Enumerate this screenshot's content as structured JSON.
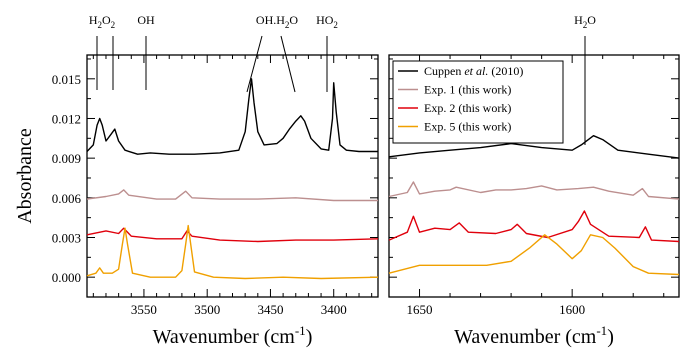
{
  "chart_data": [
    {
      "type": "line",
      "panel": "left",
      "xlabel": "Wavenumber (cm",
      "xlabel_sup": "-1",
      "xlabel_close": ")",
      "ylabel": "Absorbance",
      "xlim": [
        3595,
        3365
      ],
      "ylim": [
        -0.0015,
        0.0168
      ],
      "x_ticks": [
        3550,
        3500,
        3450,
        3400
      ],
      "x_tick_labels": [
        "3550",
        "3500",
        "3450",
        "3400"
      ],
      "y_ticks": [
        0.0,
        0.003,
        0.006,
        0.009,
        0.012,
        0.015
      ],
      "y_tick_labels": [
        "0.000",
        "0.003",
        "0.006",
        "0.009",
        "0.012",
        "0.015"
      ],
      "top_annotations": [
        {
          "label": "H",
          "sub": "2",
          "mid": "O",
          "sub2": "2",
          "x": [
            3583,
            3573
          ]
        },
        {
          "label": "OH",
          "x": [
            3549
          ]
        },
        {
          "label": "OH.H",
          "sub": "2",
          "mid": "O",
          "x": [
            3465,
            3425
          ]
        },
        {
          "label": "HO",
          "sub": "2",
          "x": [
            3400
          ]
        }
      ],
      "series": [
        {
          "color": "#000000",
          "points": [
            [
              3595,
              0.0095
            ],
            [
              3590,
              0.01
            ],
            [
              3587,
              0.0115
            ],
            [
              3585,
              0.012
            ],
            [
              3583,
              0.0115
            ],
            [
              3580,
              0.0103
            ],
            [
              3576,
              0.0108
            ],
            [
              3573,
              0.0112
            ],
            [
              3570,
              0.0103
            ],
            [
              3565,
              0.0096
            ],
            [
              3555,
              0.0093
            ],
            [
              3545,
              0.0094
            ],
            [
              3530,
              0.0093
            ],
            [
              3510,
              0.0093
            ],
            [
              3490,
              0.0094
            ],
            [
              3475,
              0.0096
            ],
            [
              3470,
              0.011
            ],
            [
              3467,
              0.0135
            ],
            [
              3465,
              0.015
            ],
            [
              3463,
              0.0132
            ],
            [
              3460,
              0.011
            ],
            [
              3455,
              0.01
            ],
            [
              3445,
              0.0101
            ],
            [
              3440,
              0.0105
            ],
            [
              3435,
              0.0112
            ],
            [
              3430,
              0.0118
            ],
            [
              3426,
              0.0122
            ],
            [
              3423,
              0.0118
            ],
            [
              3418,
              0.0105
            ],
            [
              3410,
              0.0097
            ],
            [
              3404,
              0.0096
            ],
            [
              3401,
              0.012
            ],
            [
              3400,
              0.0147
            ],
            [
              3398,
              0.0125
            ],
            [
              3395,
              0.01
            ],
            [
              3390,
              0.0096
            ],
            [
              3380,
              0.0095
            ],
            [
              3365,
              0.0095
            ]
          ]
        },
        {
          "color": "#bc8f8f",
          "points": [
            [
              3595,
              0.0059
            ],
            [
              3580,
              0.0061
            ],
            [
              3570,
              0.0063
            ],
            [
              3566,
              0.0066
            ],
            [
              3562,
              0.0062
            ],
            [
              3540,
              0.0059
            ],
            [
              3525,
              0.0059
            ],
            [
              3517,
              0.0065
            ],
            [
              3512,
              0.006
            ],
            [
              3490,
              0.0059
            ],
            [
              3460,
              0.0059
            ],
            [
              3430,
              0.006
            ],
            [
              3400,
              0.0058
            ],
            [
              3365,
              0.0058
            ]
          ]
        },
        {
          "color": "#e0000c",
          "points": [
            [
              3595,
              0.0032
            ],
            [
              3580,
              0.0035
            ],
            [
              3570,
              0.0033
            ],
            [
              3566,
              0.0037
            ],
            [
              3560,
              0.0031
            ],
            [
              3540,
              0.0029
            ],
            [
              3520,
              0.0029
            ],
            [
              3516,
              0.0035
            ],
            [
              3512,
              0.0031
            ],
            [
              3490,
              0.0028
            ],
            [
              3460,
              0.0027
            ],
            [
              3430,
              0.0028
            ],
            [
              3400,
              0.0028
            ],
            [
              3365,
              0.0029
            ]
          ]
        },
        {
          "color": "#f0a000",
          "points": [
            [
              3595,
              0.0001
            ],
            [
              3588,
              0.0003
            ],
            [
              3585,
              0.0007
            ],
            [
              3582,
              0.0003
            ],
            [
              3575,
              0.0003
            ],
            [
              3570,
              0.0006
            ],
            [
              3567,
              0.0025
            ],
            [
              3565,
              0.0037
            ],
            [
              3563,
              0.0025
            ],
            [
              3559,
              0.0003
            ],
            [
              3545,
              0.0
            ],
            [
              3525,
              0.0
            ],
            [
              3520,
              0.0005
            ],
            [
              3517,
              0.0025
            ],
            [
              3515,
              0.0039
            ],
            [
              3513,
              0.0025
            ],
            [
              3510,
              0.0004
            ],
            [
              3495,
              0.0
            ],
            [
              3470,
              -0.0001
            ],
            [
              3440,
              0.0
            ],
            [
              3410,
              -0.0001
            ],
            [
              3365,
              0.0
            ]
          ]
        }
      ]
    },
    {
      "type": "line",
      "panel": "right",
      "xlabel": "Wavenumber (cm",
      "xlabel_sup": "-1",
      "xlabel_close": ")",
      "xlim": [
        1660,
        1565
      ],
      "ylim": [
        -0.0015,
        0.0168
      ],
      "x_ticks": [
        1650,
        1600
      ],
      "x_tick_labels": [
        "1650",
        "1600"
      ],
      "top_annotations": [
        {
          "label": "H",
          "sub": "2",
          "mid": "O",
          "x": [
            1593
          ]
        }
      ],
      "legend": {
        "placement": "top-left",
        "entries": [
          {
            "color": "#000000",
            "pre": "Cuppen ",
            "ital": "et al.",
            "post": " (2010)"
          },
          {
            "color": "#bc8f8f",
            "pre": "Exp. 1 (this work)",
            "ital": "",
            "post": ""
          },
          {
            "color": "#e0000c",
            "pre": "Exp. 2 (this work)",
            "ital": "",
            "post": ""
          },
          {
            "color": "#f0a000",
            "pre": "Exp. 5 (this work)",
            "ital": "",
            "post": ""
          }
        ]
      },
      "series": [
        {
          "color": "#000000",
          "points": [
            [
              1660,
              0.0091
            ],
            [
              1650,
              0.0094
            ],
            [
              1640,
              0.0096
            ],
            [
              1630,
              0.0098
            ],
            [
              1620,
              0.0101
            ],
            [
              1610,
              0.0098
            ],
            [
              1600,
              0.0096
            ],
            [
              1597,
              0.01
            ],
            [
              1593,
              0.0107
            ],
            [
              1590,
              0.0104
            ],
            [
              1585,
              0.0096
            ],
            [
              1575,
              0.0093
            ],
            [
              1565,
              0.009
            ]
          ]
        },
        {
          "color": "#bc8f8f",
          "points": [
            [
              1660,
              0.0061
            ],
            [
              1654,
              0.0064
            ],
            [
              1652,
              0.0072
            ],
            [
              1650,
              0.0063
            ],
            [
              1645,
              0.0065
            ],
            [
              1640,
              0.0066
            ],
            [
              1638,
              0.0068
            ],
            [
              1630,
              0.0064
            ],
            [
              1625,
              0.0066
            ],
            [
              1620,
              0.0066
            ],
            [
              1615,
              0.0067
            ],
            [
              1610,
              0.0069
            ],
            [
              1605,
              0.0066
            ],
            [
              1598,
              0.0067
            ],
            [
              1593,
              0.0068
            ],
            [
              1588,
              0.0065
            ],
            [
              1580,
              0.0062
            ],
            [
              1577,
              0.0067
            ],
            [
              1575,
              0.0061
            ],
            [
              1565,
              0.0059
            ]
          ]
        },
        {
          "color": "#e0000c",
          "points": [
            [
              1660,
              0.0028
            ],
            [
              1654,
              0.0034
            ],
            [
              1652,
              0.0046
            ],
            [
              1650,
              0.0034
            ],
            [
              1645,
              0.0037
            ],
            [
              1640,
              0.0036
            ],
            [
              1637,
              0.0041
            ],
            [
              1634,
              0.0034
            ],
            [
              1625,
              0.0033
            ],
            [
              1620,
              0.0036
            ],
            [
              1618,
              0.004
            ],
            [
              1615,
              0.0033
            ],
            [
              1608,
              0.003
            ],
            [
              1600,
              0.0036
            ],
            [
              1598,
              0.0042
            ],
            [
              1596,
              0.005
            ],
            [
              1594,
              0.004
            ],
            [
              1588,
              0.0031
            ],
            [
              1578,
              0.003
            ],
            [
              1576,
              0.0038
            ],
            [
              1574,
              0.0028
            ],
            [
              1565,
              0.0027
            ]
          ]
        },
        {
          "color": "#f0a000",
          "points": [
            [
              1660,
              0.0003
            ],
            [
              1650,
              0.0009
            ],
            [
              1640,
              0.0009
            ],
            [
              1628,
              0.0009
            ],
            [
              1620,
              0.0012
            ],
            [
              1614,
              0.0022
            ],
            [
              1609,
              0.0032
            ],
            [
              1605,
              0.0025
            ],
            [
              1600,
              0.0014
            ],
            [
              1597,
              0.002
            ],
            [
              1594,
              0.0032
            ],
            [
              1590,
              0.003
            ],
            [
              1586,
              0.0022
            ],
            [
              1580,
              0.0008
            ],
            [
              1575,
              0.0003
            ],
            [
              1565,
              0.0002
            ]
          ]
        }
      ]
    }
  ]
}
